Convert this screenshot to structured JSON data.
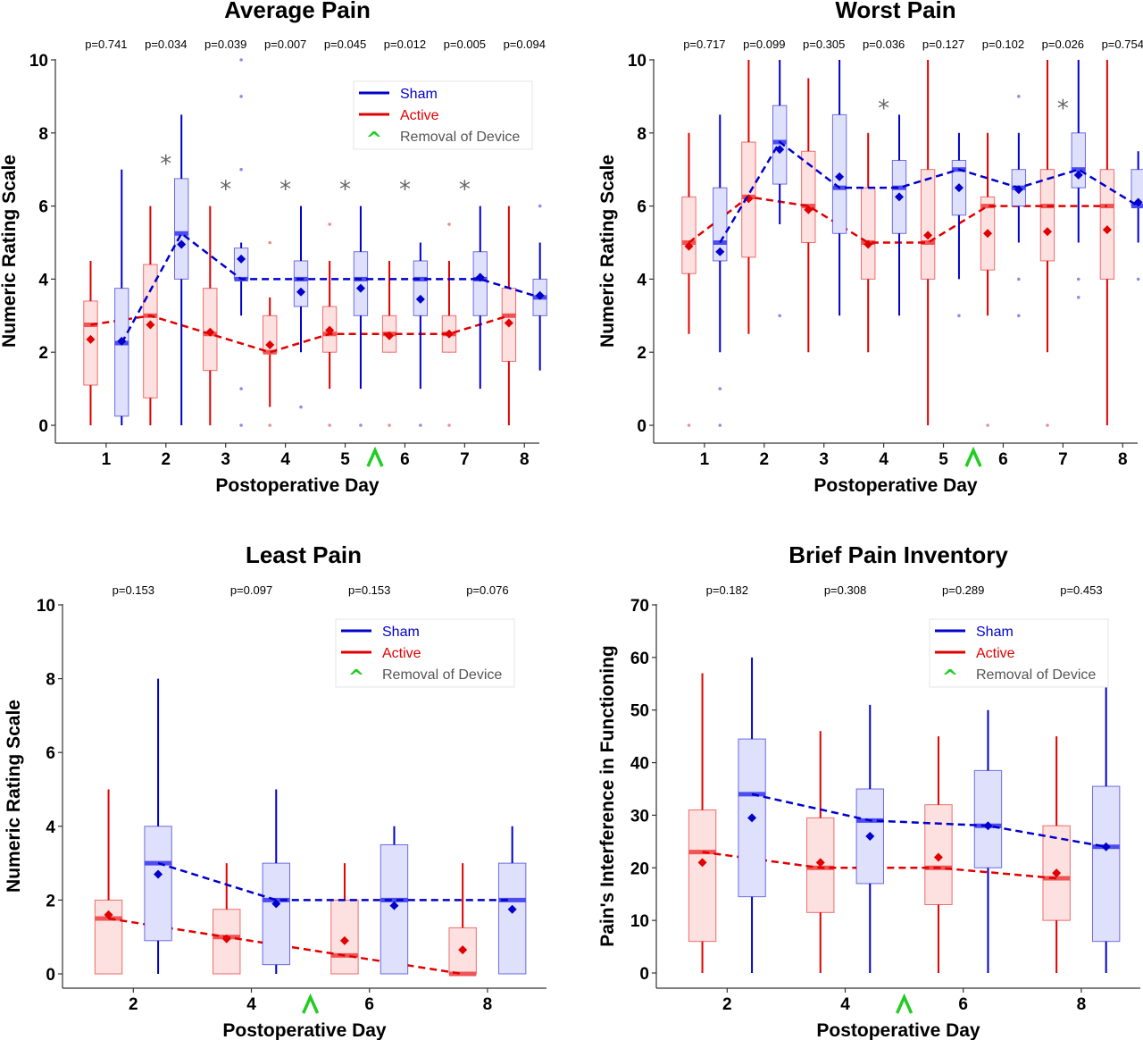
{
  "colors": {
    "sham": "#0000cc",
    "sham_fill": "#dfe0fb",
    "sham_median": "#4c4cf0",
    "active": "#e00000",
    "active_fill": "#fde0e0",
    "active_median": "#f05454",
    "removal": "#22cc22",
    "star": "#666666",
    "legend_removal_text": "#555555"
  },
  "legend": {
    "sham": "Sham",
    "active": "Active",
    "removal_symbol": "^",
    "removal": "Removal of Device"
  },
  "chart_data": [
    {
      "type": "box",
      "title": "Average Pain",
      "xlabel": "Postoperative Day",
      "ylabel": "Numeric Rating Scale",
      "ylim": [
        0,
        10
      ],
      "yticks": [
        0,
        2,
        4,
        6,
        8,
        10
      ],
      "x": [
        1,
        2,
        3,
        4,
        5,
        6,
        7,
        8
      ],
      "removal_marker_x": 5.5,
      "pvalues": [
        "p=0.741",
        "p=0.034",
        "p=0.039",
        "p=0.007",
        "p=0.045",
        "p=0.012",
        "p=0.005",
        "p=0.094"
      ],
      "significant": [
        2,
        3,
        4,
        5,
        6,
        7
      ],
      "series": [
        {
          "name": "Active",
          "boxes": [
            {
              "x": 1,
              "q1": 1.1,
              "median": 2.75,
              "q3": 3.4,
              "lo": 0,
              "hi": 4.5,
              "mean": 2.35,
              "outliers": []
            },
            {
              "x": 2,
              "q1": 0.75,
              "median": 3.0,
              "q3": 4.4,
              "lo": 0,
              "hi": 6,
              "mean": 2.75,
              "outliers": []
            },
            {
              "x": 3,
              "q1": 1.5,
              "median": 2.5,
              "q3": 3.75,
              "lo": 0,
              "hi": 6,
              "mean": 2.55,
              "outliers": []
            },
            {
              "x": 4,
              "q1": 2.0,
              "median": 2.0,
              "q3": 3.0,
              "lo": 0.5,
              "hi": 3.5,
              "mean": 2.2,
              "outliers": [
                0,
                5
              ]
            },
            {
              "x": 5,
              "q1": 2.0,
              "median": 2.5,
              "q3": 3.25,
              "lo": 1,
              "hi": 4.5,
              "mean": 2.6,
              "outliers": [
                0,
                5.5
              ]
            },
            {
              "x": 6,
              "q1": 2.0,
              "median": 2.5,
              "q3": 3.0,
              "lo": 2,
              "hi": 4.5,
              "mean": 2.45,
              "outliers": [
                0
              ]
            },
            {
              "x": 7,
              "q1": 2.0,
              "median": 2.5,
              "q3": 3.0,
              "lo": 2,
              "hi": 4.5,
              "mean": 2.5,
              "outliers": [
                0,
                5.5
              ]
            },
            {
              "x": 8,
              "q1": 1.75,
              "median": 3.0,
              "q3": 3.75,
              "lo": 0,
              "hi": 6,
              "mean": 2.8,
              "outliers": []
            }
          ]
        },
        {
          "name": "Sham",
          "boxes": [
            {
              "x": 1,
              "q1": 0.25,
              "median": 2.25,
              "q3": 3.75,
              "lo": 0,
              "hi": 7,
              "mean": 2.3,
              "outliers": []
            },
            {
              "x": 2,
              "q1": 4.0,
              "median": 5.25,
              "q3": 6.75,
              "lo": 0,
              "hi": 8.5,
              "mean": 4.95,
              "outliers": []
            },
            {
              "x": 3,
              "q1": 4.0,
              "median": 4.0,
              "q3": 4.85,
              "lo": 3,
              "hi": 5,
              "mean": 4.55,
              "outliers": [
                0,
                1,
                7,
                9,
                10
              ]
            },
            {
              "x": 4,
              "q1": 3.25,
              "median": 4.0,
              "q3": 4.5,
              "lo": 2,
              "hi": 6,
              "mean": 3.65,
              "outliers": [
                0.5
              ]
            },
            {
              "x": 5,
              "q1": 3.0,
              "median": 4.0,
              "q3": 4.75,
              "lo": 1,
              "hi": 6,
              "mean": 3.75,
              "outliers": [
                0
              ]
            },
            {
              "x": 6,
              "q1": 3.0,
              "median": 4.0,
              "q3": 4.5,
              "lo": 1,
              "hi": 5,
              "mean": 3.45,
              "outliers": [
                0
              ]
            },
            {
              "x": 7,
              "q1": 3.0,
              "median": 4.0,
              "q3": 4.75,
              "lo": 1,
              "hi": 6,
              "mean": 4.05,
              "outliers": []
            },
            {
              "x": 8,
              "q1": 3.0,
              "median": 3.5,
              "q3": 4.0,
              "lo": 1.5,
              "hi": 5,
              "mean": 3.55,
              "outliers": [
                6
              ]
            }
          ]
        }
      ]
    },
    {
      "type": "box",
      "title": "Worst Pain",
      "xlabel": "Postoperative Day",
      "ylabel": "Numeric Rating Scale",
      "ylim": [
        0,
        10
      ],
      "yticks": [
        0,
        2,
        4,
        6,
        8,
        10
      ],
      "x": [
        1,
        2,
        3,
        4,
        5,
        6,
        7,
        8
      ],
      "removal_marker_x": 5.5,
      "pvalues": [
        "p=0.717",
        "p=0.099",
        "p=0.305",
        "p=0.036",
        "p=0.127",
        "p=0.102",
        "p=0.026",
        "p=0.754"
      ],
      "significant": [
        4,
        7
      ],
      "series": [
        {
          "name": "Active",
          "boxes": [
            {
              "x": 1,
              "q1": 4.15,
              "median": 5.0,
              "q3": 6.25,
              "lo": 2.5,
              "hi": 8,
              "mean": 4.9,
              "outliers": [
                0
              ]
            },
            {
              "x": 2,
              "q1": 4.6,
              "median": 6.25,
              "q3": 7.75,
              "lo": 2.5,
              "hi": 10,
              "mean": 6.2,
              "outliers": []
            },
            {
              "x": 3,
              "q1": 5.0,
              "median": 6.0,
              "q3": 7.5,
              "lo": 2,
              "hi": 9.5,
              "mean": 5.9,
              "outliers": []
            },
            {
              "x": 4,
              "q1": 4.0,
              "median": 5.0,
              "q3": 6.5,
              "lo": 2,
              "hi": 8,
              "mean": 4.95,
              "outliers": []
            },
            {
              "x": 5,
              "q1": 4.0,
              "median": 5.0,
              "q3": 7.0,
              "lo": 0,
              "hi": 10,
              "mean": 5.2,
              "outliers": []
            },
            {
              "x": 6,
              "q1": 4.25,
              "median": 6.0,
              "q3": 6.25,
              "lo": 3,
              "hi": 8,
              "mean": 5.25,
              "outliers": [
                0
              ]
            },
            {
              "x": 7,
              "q1": 4.5,
              "median": 6.0,
              "q3": 7.0,
              "lo": 2,
              "hi": 10,
              "mean": 5.3,
              "outliers": [
                0
              ]
            },
            {
              "x": 8,
              "q1": 4.0,
              "median": 6.0,
              "q3": 7.0,
              "lo": 0,
              "hi": 10,
              "mean": 5.35,
              "outliers": []
            }
          ]
        },
        {
          "name": "Sham",
          "boxes": [
            {
              "x": 1,
              "q1": 4.5,
              "median": 5.0,
              "q3": 6.5,
              "lo": 2,
              "hi": 8.5,
              "mean": 4.75,
              "outliers": [
                0,
                1
              ]
            },
            {
              "x": 2,
              "q1": 6.6,
              "median": 7.75,
              "q3": 8.75,
              "lo": 5.5,
              "hi": 10,
              "mean": 7.55,
              "outliers": [
                3
              ]
            },
            {
              "x": 3,
              "q1": 5.25,
              "median": 6.5,
              "q3": 8.5,
              "lo": 3,
              "hi": 10,
              "mean": 6.8,
              "outliers": []
            },
            {
              "x": 4,
              "q1": 5.25,
              "median": 6.5,
              "q3": 7.25,
              "lo": 3,
              "hi": 8.5,
              "mean": 6.25,
              "outliers": []
            },
            {
              "x": 5,
              "q1": 5.75,
              "median": 7.0,
              "q3": 7.25,
              "lo": 4,
              "hi": 8,
              "mean": 6.5,
              "outliers": [
                3
              ]
            },
            {
              "x": 6,
              "q1": 6.0,
              "median": 6.5,
              "q3": 7.0,
              "lo": 5,
              "hi": 8,
              "mean": 6.45,
              "outliers": [
                3,
                4,
                9
              ]
            },
            {
              "x": 7,
              "q1": 6.5,
              "median": 7.0,
              "q3": 8.0,
              "lo": 5,
              "hi": 10,
              "mean": 6.85,
              "outliers": [
                3.5,
                4
              ]
            },
            {
              "x": 8,
              "q1": 6.0,
              "median": 6.0,
              "q3": 7.0,
              "lo": 5,
              "hi": 7.5,
              "mean": 6.1,
              "outliers": [
                4
              ]
            }
          ]
        }
      ]
    },
    {
      "type": "box",
      "title": "Least Pain",
      "xlabel": "Postoperative Day",
      "ylabel": "Numeric Rating Scale",
      "ylim": [
        0,
        10
      ],
      "yticks": [
        0,
        2,
        4,
        6,
        8,
        10
      ],
      "x": [
        2,
        4,
        6,
        8
      ],
      "removal_marker_x": 5,
      "pvalues": [
        "p=0.153",
        "p=0.097",
        "p=0.153",
        "p=0.076"
      ],
      "significant": [],
      "series": [
        {
          "name": "Active",
          "boxes": [
            {
              "x": 2,
              "q1": 0,
              "median": 1.5,
              "q3": 2.0,
              "lo": 0,
              "hi": 5,
              "mean": 1.6,
              "outliers": []
            },
            {
              "x": 4,
              "q1": 0,
              "median": 1.0,
              "q3": 1.75,
              "lo": 0,
              "hi": 3,
              "mean": 0.95,
              "outliers": []
            },
            {
              "x": 6,
              "q1": 0,
              "median": 0.5,
              "q3": 2.0,
              "lo": 0,
              "hi": 3,
              "mean": 0.9,
              "outliers": []
            },
            {
              "x": 8,
              "q1": 0,
              "median": 0,
              "q3": 1.25,
              "lo": 0,
              "hi": 3,
              "mean": 0.65,
              "outliers": []
            }
          ]
        },
        {
          "name": "Sham",
          "boxes": [
            {
              "x": 2,
              "q1": 0.9,
              "median": 3.0,
              "q3": 4.0,
              "lo": 0,
              "hi": 8,
              "mean": 2.7,
              "outliers": []
            },
            {
              "x": 4,
              "q1": 0.25,
              "median": 2.0,
              "q3": 3.0,
              "lo": 0,
              "hi": 5,
              "mean": 1.9,
              "outliers": []
            },
            {
              "x": 6,
              "q1": 0,
              "median": 2.0,
              "q3": 3.5,
              "lo": 0,
              "hi": 4,
              "mean": 1.85,
              "outliers": []
            },
            {
              "x": 8,
              "q1": 0,
              "median": 2.0,
              "q3": 3.0,
              "lo": 0,
              "hi": 4,
              "mean": 1.75,
              "outliers": []
            }
          ]
        }
      ]
    },
    {
      "type": "box",
      "title": "Brief Pain Inventory",
      "xlabel": "Postoperative Day",
      "ylabel": "Pain's Interference in Functioning",
      "ylim": [
        0,
        70
      ],
      "yticks": [
        0,
        10,
        20,
        30,
        40,
        50,
        60,
        70
      ],
      "x": [
        2,
        4,
        6,
        8
      ],
      "removal_marker_x": 5,
      "pvalues": [
        "p=0.182",
        "p=0.308",
        "p=0.289",
        "p=0.453"
      ],
      "significant": [],
      "series": [
        {
          "name": "Active",
          "boxes": [
            {
              "x": 2,
              "q1": 6,
              "median": 23,
              "q3": 31,
              "lo": 0,
              "hi": 57,
              "mean": 21,
              "outliers": []
            },
            {
              "x": 4,
              "q1": 11.5,
              "median": 20,
              "q3": 29.5,
              "lo": 0,
              "hi": 46,
              "mean": 21,
              "outliers": []
            },
            {
              "x": 6,
              "q1": 13,
              "median": 20,
              "q3": 32,
              "lo": 0,
              "hi": 45,
              "mean": 22,
              "outliers": []
            },
            {
              "x": 8,
              "q1": 10,
              "median": 18,
              "q3": 28,
              "lo": 0,
              "hi": 45,
              "mean": 19,
              "outliers": []
            }
          ]
        },
        {
          "name": "Sham",
          "boxes": [
            {
              "x": 2,
              "q1": 14.5,
              "median": 34,
              "q3": 44.5,
              "lo": 0,
              "hi": 60,
              "mean": 29.5,
              "outliers": []
            },
            {
              "x": 4,
              "q1": 17,
              "median": 29,
              "q3": 35,
              "lo": 0,
              "hi": 51,
              "mean": 26,
              "outliers": []
            },
            {
              "x": 6,
              "q1": 20,
              "median": 28,
              "q3": 38.5,
              "lo": 0,
              "hi": 50,
              "mean": 28,
              "outliers": []
            },
            {
              "x": 8,
              "q1": 6,
              "median": 24,
              "q3": 35.5,
              "lo": 0,
              "hi": 57,
              "mean": 24,
              "outliers": []
            }
          ]
        }
      ]
    }
  ]
}
